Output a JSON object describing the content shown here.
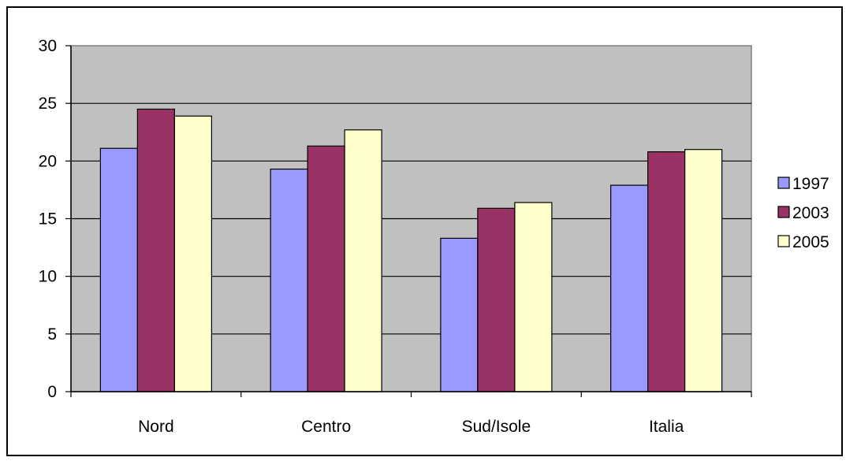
{
  "chart_data": {
    "type": "bar",
    "categories": [
      "Nord",
      "Centro",
      "Sud/Isole",
      "Italia"
    ],
    "series": [
      {
        "name": "1997",
        "values": [
          21.1,
          19.3,
          13.3,
          17.9
        ],
        "color": "#9999ff"
      },
      {
        "name": "2003",
        "values": [
          24.5,
          21.3,
          15.9,
          20.8
        ],
        "color": "#993366"
      },
      {
        "name": "2005",
        "values": [
          23.9,
          22.7,
          16.4,
          21.0
        ],
        "color": "#ffffcc"
      }
    ],
    "ylim": [
      0,
      30
    ],
    "yticks": [
      0,
      5,
      10,
      15,
      20,
      25,
      30
    ],
    "ytick_labels": [
      "0",
      "5",
      "10",
      "15",
      "20",
      "25",
      "30"
    ],
    "grid": true,
    "plot_background": "#c0c0c0",
    "legend_position": "right"
  }
}
